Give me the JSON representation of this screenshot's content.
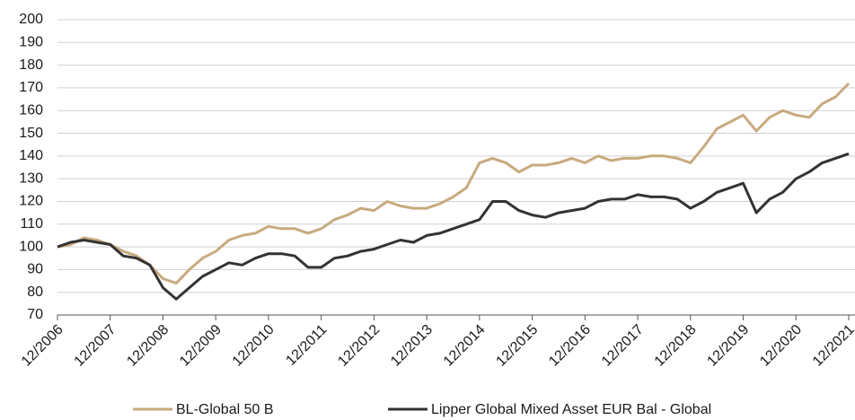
{
  "chart_data": {
    "type": "line",
    "categories": [
      "12/2006",
      null,
      null,
      null,
      "12/2007",
      null,
      null,
      null,
      "12/2008",
      null,
      null,
      null,
      "12/2009",
      null,
      null,
      null,
      "12/2010",
      null,
      null,
      null,
      "12/2011",
      null,
      null,
      null,
      "12/2012",
      null,
      null,
      null,
      "12/2013",
      null,
      null,
      null,
      "12/2014",
      null,
      null,
      null,
      "12/2015",
      null,
      null,
      null,
      "12/2016",
      null,
      null,
      null,
      "12/2017",
      null,
      null,
      null,
      "12/2018",
      null,
      null,
      null,
      "12/2019",
      null,
      null,
      null,
      "12/2020",
      null,
      null,
      null,
      "12/2021"
    ],
    "series": [
      {
        "name": "BL-Global 50 B",
        "color": "#c8aa7e",
        "values": [
          100,
          101,
          104,
          103,
          101,
          98,
          96,
          92,
          86,
          84,
          90,
          95,
          98,
          103,
          105,
          106,
          109,
          108,
          108,
          106,
          108,
          112,
          114,
          117,
          116,
          120,
          118,
          117,
          117,
          119,
          122,
          126,
          137,
          139,
          137,
          133,
          136,
          136,
          137,
          139,
          137,
          140,
          138,
          139,
          139,
          140,
          140,
          139,
          137,
          144,
          152,
          155,
          158,
          151,
          157,
          160,
          158,
          157,
          163,
          166,
          172
        ]
      },
      {
        "name": "Lipper Global Mixed Asset EUR Bal - Global",
        "color": "#333333",
        "values": [
          100,
          102,
          103,
          102,
          101,
          96,
          95,
          92,
          82,
          77,
          82,
          87,
          90,
          93,
          92,
          95,
          97,
          97,
          96,
          91,
          91,
          95,
          96,
          98,
          99,
          101,
          103,
          102,
          105,
          106,
          108,
          110,
          112,
          120,
          120,
          116,
          114,
          113,
          115,
          116,
          117,
          120,
          121,
          121,
          123,
          122,
          122,
          121,
          117,
          120,
          124,
          126,
          128,
          115,
          121,
          124,
          130,
          133,
          137,
          139,
          141
        ]
      }
    ],
    "ylim": [
      70,
      200
    ],
    "yticks": [
      70,
      80,
      90,
      100,
      110,
      120,
      130,
      140,
      150,
      160,
      170,
      180,
      190,
      200
    ],
    "grid": true,
    "legend": "bottom"
  }
}
